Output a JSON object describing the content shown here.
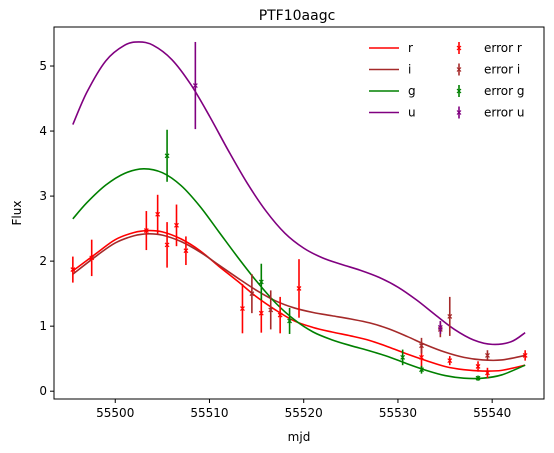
{
  "chart_data": {
    "type": "line",
    "title": "PTF10aagc",
    "xlabel": "mjd",
    "ylabel": "Flux",
    "xlim": [
      55493.5,
      55545.5
    ],
    "ylim": [
      -0.12,
      5.6
    ],
    "xticks": [
      55500,
      55510,
      55520,
      55530,
      55540
    ],
    "xtick_labels": [
      "55500",
      "55510",
      "55520",
      "55530",
      "55540"
    ],
    "yticks": [
      0,
      1,
      2,
      3,
      4,
      5
    ],
    "ytick_labels": [
      "0",
      "1",
      "2",
      "3",
      "4",
      "5"
    ],
    "legend_position": "top-right",
    "legend_columns": 2,
    "series": [
      {
        "name": "r",
        "kind": "line",
        "color": "#ff0000",
        "points": [
          [
            55495.5,
            1.85
          ],
          [
            55498,
            2.12
          ],
          [
            55500,
            2.33
          ],
          [
            55502,
            2.44
          ],
          [
            55503.5,
            2.47
          ],
          [
            55505,
            2.45
          ],
          [
            55507,
            2.34
          ],
          [
            55509,
            2.16
          ],
          [
            55511,
            1.92
          ],
          [
            55513,
            1.69
          ],
          [
            55515,
            1.45
          ],
          [
            55517,
            1.25
          ],
          [
            55519,
            1.08
          ],
          [
            55521,
            0.98
          ],
          [
            55523,
            0.91
          ],
          [
            55525,
            0.85
          ],
          [
            55527,
            0.78
          ],
          [
            55529,
            0.68
          ],
          [
            55531,
            0.57
          ],
          [
            55533,
            0.47
          ],
          [
            55535,
            0.38
          ],
          [
            55537,
            0.33
          ],
          [
            55539,
            0.31
          ],
          [
            55541,
            0.32
          ],
          [
            55543.5,
            0.4
          ]
        ]
      },
      {
        "name": "i",
        "kind": "line",
        "color": "#a52a2a",
        "points": [
          [
            55495.5,
            1.8
          ],
          [
            55498,
            2.08
          ],
          [
            55500,
            2.28
          ],
          [
            55502,
            2.39
          ],
          [
            55503.5,
            2.42
          ],
          [
            55505,
            2.4
          ],
          [
            55507,
            2.3
          ],
          [
            55509,
            2.14
          ],
          [
            55511,
            1.94
          ],
          [
            55513,
            1.74
          ],
          [
            55515,
            1.55
          ],
          [
            55517,
            1.39
          ],
          [
            55519,
            1.28
          ],
          [
            55521,
            1.21
          ],
          [
            55523,
            1.16
          ],
          [
            55525,
            1.11
          ],
          [
            55527,
            1.05
          ],
          [
            55529,
            0.96
          ],
          [
            55531,
            0.84
          ],
          [
            55533,
            0.71
          ],
          [
            55535,
            0.6
          ],
          [
            55537,
            0.52
          ],
          [
            55539,
            0.48
          ],
          [
            55541,
            0.48
          ],
          [
            55543.5,
            0.55
          ]
        ]
      },
      {
        "name": "g",
        "kind": "line",
        "color": "#008000",
        "points": [
          [
            55495.5,
            2.65
          ],
          [
            55497,
            2.9
          ],
          [
            55499,
            3.17
          ],
          [
            55501,
            3.35
          ],
          [
            55503,
            3.42
          ],
          [
            55505,
            3.36
          ],
          [
            55507,
            3.16
          ],
          [
            55509,
            2.84
          ],
          [
            55511,
            2.45
          ],
          [
            55513,
            2.06
          ],
          [
            55515,
            1.69
          ],
          [
            55517,
            1.36
          ],
          [
            55519,
            1.1
          ],
          [
            55521,
            0.91
          ],
          [
            55523,
            0.79
          ],
          [
            55525,
            0.7
          ],
          [
            55527,
            0.62
          ],
          [
            55529,
            0.53
          ],
          [
            55531,
            0.42
          ],
          [
            55533,
            0.32
          ],
          [
            55535,
            0.24
          ],
          [
            55537,
            0.2
          ],
          [
            55539,
            0.2
          ],
          [
            55541,
            0.25
          ],
          [
            55543.5,
            0.4
          ]
        ]
      },
      {
        "name": "u",
        "kind": "line",
        "color": "#800080",
        "points": [
          [
            55495.5,
            4.1
          ],
          [
            55497,
            4.6
          ],
          [
            55499,
            5.08
          ],
          [
            55501,
            5.32
          ],
          [
            55502.5,
            5.37
          ],
          [
            55504,
            5.32
          ],
          [
            55506,
            5.1
          ],
          [
            55508,
            4.72
          ],
          [
            55510,
            4.23
          ],
          [
            55512,
            3.7
          ],
          [
            55514,
            3.2
          ],
          [
            55516,
            2.77
          ],
          [
            55518,
            2.43
          ],
          [
            55520,
            2.2
          ],
          [
            55522,
            2.05
          ],
          [
            55524,
            1.95
          ],
          [
            55526,
            1.86
          ],
          [
            55528,
            1.75
          ],
          [
            55530,
            1.6
          ],
          [
            55532,
            1.4
          ],
          [
            55534,
            1.17
          ],
          [
            55536,
            0.95
          ],
          [
            55538,
            0.79
          ],
          [
            55540,
            0.72
          ],
          [
            55542,
            0.76
          ],
          [
            55543.5,
            0.9
          ]
        ]
      },
      {
        "name": "error r",
        "kind": "errorbar",
        "color": "#ff0000",
        "points": [
          [
            55495.5,
            1.87,
            0.2
          ],
          [
            55497.5,
            2.05,
            0.28
          ],
          [
            55503.3,
            2.47,
            0.3
          ],
          [
            55504.5,
            2.72,
            0.3
          ],
          [
            55505.5,
            2.25,
            0.35
          ],
          [
            55506.5,
            2.55,
            0.32
          ],
          [
            55507.5,
            2.16,
            0.22
          ],
          [
            55513.5,
            1.27,
            0.38
          ],
          [
            55515.5,
            1.2,
            0.3
          ],
          [
            55517.5,
            1.17,
            0.28
          ],
          [
            55519.5,
            1.58,
            0.45
          ],
          [
            55532.5,
            0.52,
            0.2
          ],
          [
            55535.5,
            0.47,
            0.07
          ],
          [
            55538.5,
            0.38,
            0.08
          ],
          [
            55539.5,
            0.28,
            0.08
          ],
          [
            55543.5,
            0.55,
            0.08
          ]
        ]
      },
      {
        "name": "error i",
        "kind": "errorbar",
        "color": "#a52a2a",
        "points": [
          [
            55514.5,
            1.5,
            0.3
          ],
          [
            55516.5,
            1.25,
            0.3
          ],
          [
            55532.5,
            0.7,
            0.12
          ],
          [
            55534.5,
            0.95,
            0.12
          ],
          [
            55535.5,
            1.15,
            0.3
          ],
          [
            55539.5,
            0.55,
            0.08
          ]
        ]
      },
      {
        "name": "error g",
        "kind": "errorbar",
        "color": "#008000",
        "points": [
          [
            55505.5,
            3.62,
            0.4
          ],
          [
            55515.5,
            1.68,
            0.28
          ],
          [
            55518.5,
            1.08,
            0.2
          ],
          [
            55530.5,
            0.52,
            0.12
          ],
          [
            55532.5,
            0.33,
            0.06
          ],
          [
            55538.5,
            0.2,
            0.04
          ]
        ]
      },
      {
        "name": "error u",
        "kind": "errorbar",
        "color": "#800080",
        "points": [
          [
            55508.5,
            4.7,
            0.67
          ],
          [
            55534.5,
            0.98,
            0.1
          ]
        ]
      }
    ]
  }
}
